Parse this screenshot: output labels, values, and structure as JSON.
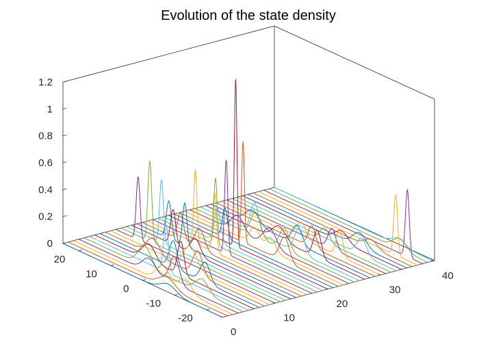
{
  "chart_data": {
    "type": "waterfall-3d",
    "title": "Evolution of the state density",
    "z_ticks": [
      "0",
      "0.2",
      "0.4",
      "0.6",
      "0.8",
      "1",
      "1.2"
    ],
    "z_tick_values": [
      0,
      0.2,
      0.4,
      0.6,
      0.8,
      1.0,
      1.2
    ],
    "zlim": [
      0,
      1.2
    ],
    "state_ticks": [
      "-20",
      "-10",
      "0",
      "10",
      "20"
    ],
    "state_tick_values": [
      -20,
      -10,
      0,
      10,
      20
    ],
    "state_range": [
      -25,
      25
    ],
    "time_ticks": [
      "0",
      "10",
      "20",
      "30",
      "40"
    ],
    "time_tick_values": [
      0,
      10,
      20,
      30,
      40
    ],
    "time_range": [
      0,
      40
    ],
    "n_series": 41,
    "series_colors": [
      "#0072BD",
      "#D95319",
      "#EDB120",
      "#7E2F8E",
      "#77AC30",
      "#4DBEEE",
      "#A2142F"
    ],
    "series_peaks": [
      {
        "t": 0,
        "peaks": [
          [
            -8,
            0.06,
            2.5
          ]
        ]
      },
      {
        "t": 1,
        "peaks": [
          [
            -6,
            0.08,
            2.5
          ]
        ]
      },
      {
        "t": 2,
        "peaks": [
          [
            -3,
            0.12,
            2.0
          ],
          [
            -10,
            0.1,
            2.0
          ]
        ]
      },
      {
        "t": 3,
        "peaks": [
          [
            -5,
            0.2,
            1.5
          ],
          [
            3,
            0.1,
            2.0
          ]
        ]
      },
      {
        "t": 4,
        "peaks": [
          [
            6,
            0.15,
            2.0
          ],
          [
            -12,
            0.1,
            2.0
          ]
        ]
      },
      {
        "t": 5,
        "peaks": [
          [
            1,
            0.35,
            0.8
          ]
        ]
      },
      {
        "t": 6,
        "peaks": [
          [
            -2,
            0.25,
            1.0
          ],
          [
            8,
            0.12,
            2.0
          ]
        ]
      },
      {
        "t": 7,
        "peaks": [
          [
            2,
            0.2,
            1.2
          ],
          [
            -8,
            0.15,
            1.5
          ]
        ]
      },
      {
        "t": 8,
        "peaks": [
          [
            -4,
            0.18,
            1.5
          ],
          [
            10,
            0.12,
            2.0
          ]
        ]
      },
      {
        "t": 9,
        "peaks": [
          [
            0,
            0.16,
            2.0
          ]
        ]
      },
      {
        "t": 10,
        "peaks": [
          [
            18,
            0.47,
            0.6
          ]
        ]
      },
      {
        "t": 11,
        "peaks": [
          [
            16,
            0.6,
            0.6
          ]
        ]
      },
      {
        "t": 12,
        "peaks": [
          [
            14,
            0.47,
            0.6
          ]
        ]
      },
      {
        "t": 13,
        "peaks": [
          [
            12,
            0.26,
            0.8
          ],
          [
            5,
            0.12,
            1.5
          ]
        ]
      },
      {
        "t": 14,
        "peaks": [
          [
            10,
            0.32,
            0.7
          ],
          [
            15,
            0.28,
            0.8
          ]
        ]
      },
      {
        "t": 15,
        "peaks": [
          [
            7,
            0.15,
            1.5
          ],
          [
            13,
            0.2,
            1.0
          ]
        ]
      },
      {
        "t": 16,
        "peaks": [
          [
            4,
            0.45,
            0.6
          ],
          [
            10,
            0.55,
            0.5
          ]
        ]
      },
      {
        "t": 17,
        "peaks": [
          [
            2,
            0.7,
            0.5
          ]
        ]
      },
      {
        "t": 18,
        "peaks": [
          [
            7,
            0.5,
            0.5
          ]
        ]
      },
      {
        "t": 19,
        "peaks": [
          [
            8,
            0.25,
            1.0
          ]
        ]
      },
      {
        "t": 20,
        "peaks": [
          [
            4,
            1.25,
            0.4
          ]
        ]
      },
      {
        "t": 21,
        "peaks": [
          [
            9,
            0.22,
            0.8
          ]
        ]
      },
      {
        "t": 22,
        "peaks": [
          [
            5,
            0.75,
            0.45
          ],
          [
            -8,
            0.18,
            1.5
          ]
        ]
      },
      {
        "t": 23,
        "peaks": [
          [
            3,
            0.12,
            1.5
          ],
          [
            -2,
            0.1,
            1.5
          ]
        ]
      },
      {
        "t": 24,
        "peaks": [
          [
            0,
            0.14,
            2.0
          ],
          [
            10,
            0.12,
            2.0
          ]
        ]
      },
      {
        "t": 25,
        "peaks": [
          [
            -3,
            0.16,
            1.5
          ],
          [
            6,
            0.18,
            1.5
          ]
        ]
      },
      {
        "t": 26,
        "peaks": [
          [
            -6,
            0.18,
            1.5
          ],
          [
            8,
            0.22,
            1.2
          ]
        ]
      },
      {
        "t": 27,
        "peaks": [
          [
            -10,
            0.2,
            1.2
          ],
          [
            2,
            0.1,
            2.0
          ]
        ]
      },
      {
        "t": 28,
        "peaks": [
          [
            -2,
            0.14,
            1.5
          ],
          [
            12,
            0.1,
            2.0
          ]
        ]
      },
      {
        "t": 29,
        "peaks": [
          [
            -5,
            0.16,
            1.2
          ]
        ]
      },
      {
        "t": 30,
        "peaks": [
          [
            -12,
            0.2,
            1.0
          ],
          [
            0,
            0.12,
            1.5
          ]
        ]
      },
      {
        "t": 31,
        "peaks": [
          [
            -8,
            0.15,
            1.2
          ]
        ]
      },
      {
        "t": 32,
        "peaks": [
          [
            -4,
            0.1,
            1.5
          ]
        ]
      },
      {
        "t": 33,
        "peaks": [
          [
            -14,
            0.12,
            1.5
          ]
        ]
      },
      {
        "t": 34,
        "peaks": [
          [
            -6,
            0.08,
            2.0
          ]
        ]
      },
      {
        "t": 35,
        "peaks": [
          [
            -10,
            0.1,
            2.0
          ]
        ]
      },
      {
        "t": 36,
        "peaks": [
          [
            -12,
            0.06,
            2.0
          ]
        ]
      },
      {
        "t": 37,
        "peaks": [
          [
            -18,
            0.45,
            0.6
          ]
        ]
      },
      {
        "t": 38,
        "peaks": [
          [
            -20,
            0.5,
            0.6
          ]
        ]
      },
      {
        "t": 39,
        "peaks": [
          [
            -16,
            0.08,
            2.0
          ]
        ]
      },
      {
        "t": 40,
        "peaks": [
          [
            -14,
            0.05,
            2.0
          ]
        ]
      }
    ]
  }
}
